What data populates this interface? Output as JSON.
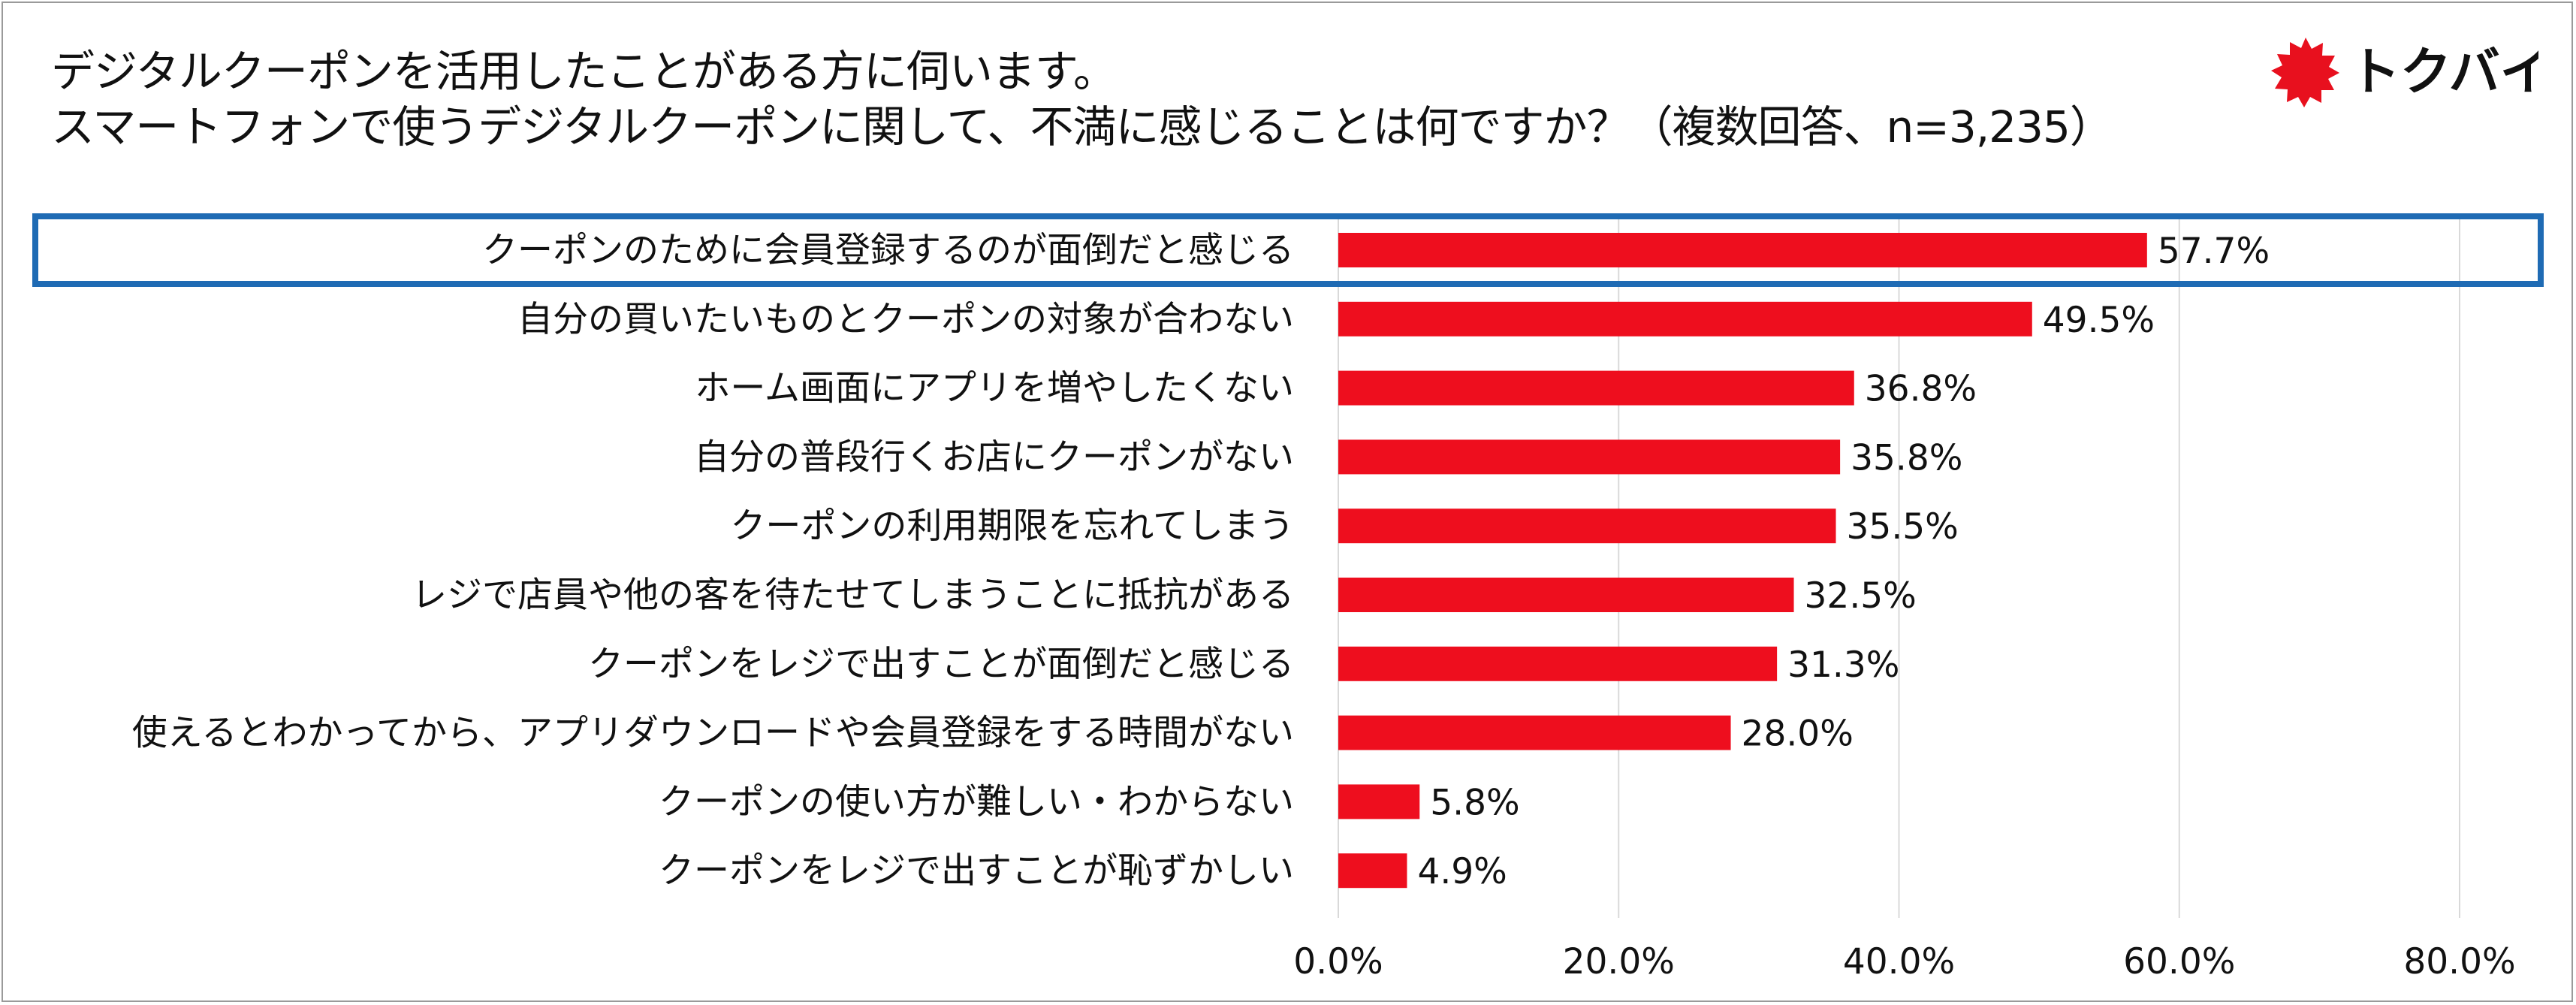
{
  "title": {
    "line1": "デジタルクーポンを活用したことがある方に伺います。",
    "line2": "スマートフォンで使うデジタルクーポンに関して、不満に感じることは何ですか？（複数回答、n=3,235）"
  },
  "logo": {
    "text": "トクバイ",
    "icon": "red-starburst-icon",
    "color": "#e8101e"
  },
  "colors": {
    "bar": "#ee0e1e",
    "highlight": "#1f6bb4",
    "grid": "#d9d9d9"
  },
  "chart_data": {
    "type": "bar",
    "orientation": "horizontal",
    "categories": [
      "クーポンのために会員登録するのが面倒だと感じる",
      "自分の買いたいものとクーポンの対象が合わない",
      "ホーム画面にアプリを増やしたくない",
      "自分の普段行くお店にクーポンがない",
      "クーポンの利用期限を忘れてしまう",
      "レジで店員や他の客を待たせてしまうことに抵抗がある",
      "クーポンをレジで出すことが面倒だと感じる",
      "使えるとわかってから、アプリダウンロードや会員登録をする時間がない",
      "クーポンの使い方が難しい・わからない",
      "クーポンをレジで出すことが恥ずかしい"
    ],
    "values": [
      57.7,
      49.5,
      36.8,
      35.8,
      35.5,
      32.5,
      31.3,
      28.0,
      5.8,
      4.9
    ],
    "value_labels": [
      "57.7%",
      "49.5%",
      "36.8%",
      "35.8%",
      "35.5%",
      "32.5%",
      "31.3%",
      "28.0%",
      "5.8%",
      "4.9%"
    ],
    "xlim": [
      0,
      80
    ],
    "xticks": [
      0,
      20,
      40,
      60,
      80
    ],
    "xtick_labels": [
      "0.0%",
      "20.0%",
      "40.0%",
      "60.0%",
      "80.0%"
    ],
    "highlighted_index": 0,
    "grid": "vertical"
  }
}
